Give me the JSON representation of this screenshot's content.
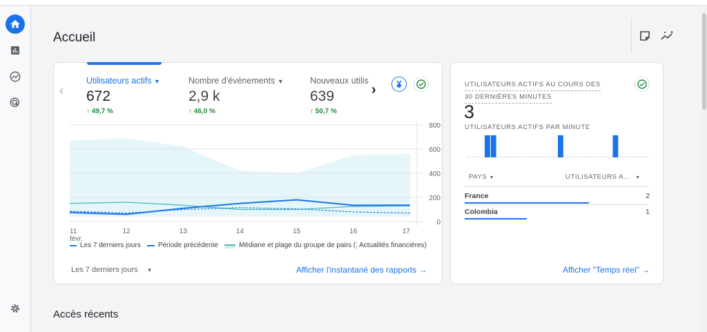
{
  "page": {
    "title": "Accueil",
    "recent_title": "Accès récents"
  },
  "sidebar": {
    "items": [
      {
        "name": "home",
        "icon": "home-icon",
        "active": true
      },
      {
        "name": "reports",
        "icon": "bar-chart-icon"
      },
      {
        "name": "explore",
        "icon": "explore-icon"
      },
      {
        "name": "advertising",
        "icon": "target-cursor-icon"
      }
    ],
    "settings_icon": "gear-icon"
  },
  "header_actions": {
    "icons": [
      "note-icon",
      "insights-icon"
    ]
  },
  "overview_card": {
    "metrics": [
      {
        "label": "Utilisateurs actifs",
        "value": "672",
        "delta": "49,7 %",
        "selected": true
      },
      {
        "label": "Nombre d'événements",
        "value": "2,9 k",
        "delta": "46,0 %"
      },
      {
        "label": "Nouveaux utilis",
        "value": "639",
        "delta": "50,7 %"
      }
    ],
    "date_range": "Les 7 derniers jours",
    "link": "Afficher l'instantané des rapports",
    "legend": [
      "Les 7 derniers jours",
      "Période précédente",
      "Médiane et plage du groupe de pairs (: Actualités financières)"
    ],
    "colors": {
      "accent": "#1a73e8",
      "median": "#4fb8b8",
      "band": "#e4f6f9",
      "positive": "#1e8e3e"
    }
  },
  "chart_data": {
    "type": "line",
    "x": [
      "11",
      "12",
      "13",
      "14",
      "15",
      "16",
      "17"
    ],
    "x_sublabel": "févr.",
    "y_ticks": [
      "0",
      "200",
      "400",
      "600",
      "800"
    ],
    "ylim": [
      0,
      800
    ],
    "grid": true,
    "series": [
      {
        "name": "Les 7 derniers jours",
        "values": [
          75,
          60,
          110,
          150,
          180,
          135,
          135
        ],
        "style": "solid"
      },
      {
        "name": "Période précédente",
        "values": [
          85,
          70,
          100,
          115,
          105,
          80,
          70
        ],
        "style": "dashed"
      },
      {
        "name": "Médiane et plage du groupe de pairs (: Actualités financières)",
        "values": [
          150,
          160,
          135,
          100,
          100,
          125,
          130
        ],
        "band_upper": [
          670,
          690,
          620,
          420,
          400,
          550,
          560
        ],
        "band_lower": [
          40,
          40,
          40,
          40,
          40,
          40,
          40
        ]
      }
    ]
  },
  "realtime_card": {
    "title_line1": "Utilisateurs actifs au cours des",
    "title_line2": "30 dernières minutes",
    "value": "3",
    "per_minute_label": "Utilisateurs actifs par minute",
    "per_minute": [
      0,
      0,
      0,
      1,
      1,
      0,
      0,
      0,
      0,
      0,
      0,
      0,
      0,
      0,
      0,
      1,
      0,
      0,
      0,
      0,
      0,
      0,
      0,
      0,
      1,
      0,
      0,
      0,
      0,
      0
    ],
    "col_country": "Pays",
    "col_users": "Utilisateurs a...",
    "rows": [
      {
        "country": "France",
        "users": "2",
        "share": 2
      },
      {
        "country": "Colombia",
        "users": "1",
        "share": 1
      }
    ],
    "link": "Afficher \"Temps réel\""
  }
}
